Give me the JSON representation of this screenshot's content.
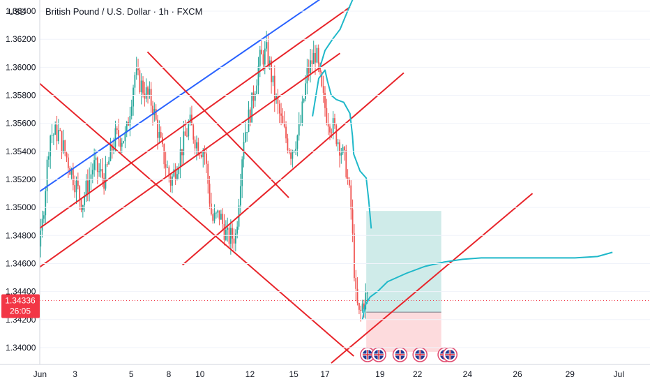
{
  "chart_data": {
    "type": "candlestick",
    "title": "British Pound / U.S. Dollar · 1h · FXCM",
    "currency_label": "USD",
    "y_axis": {
      "ylim": [
        1.3388,
        1.3648
      ],
      "ticks": [
        1.34,
        1.342,
        1.344,
        1.346,
        1.348,
        1.35,
        1.352,
        1.354,
        1.356,
        1.358,
        1.36,
        1.362,
        1.364
      ],
      "tick_labels": [
        "1.34000",
        "1.34200",
        "1.34400",
        "1.34600",
        "1.34800",
        "1.35000",
        "1.35200",
        "1.35400",
        "1.35600",
        "1.35800",
        "1.36000",
        "1.36200",
        "1.36400"
      ]
    },
    "x_axis": {
      "xlim": [
        0,
        52
      ],
      "ticks": [
        {
          "label": "Jun",
          "x": 3.2
        },
        {
          "label": "3",
          "x": 6.0
        },
        {
          "label": "5",
          "x": 10.5
        },
        {
          "label": "8",
          "x": 13.5
        },
        {
          "label": "10",
          "x": 16.0
        },
        {
          "label": "12",
          "x": 20.0
        },
        {
          "label": "15",
          "x": 23.5
        },
        {
          "label": "17",
          "x": 26.0
        },
        {
          "label": "19",
          "x": 30.4
        },
        {
          "label": "22",
          "x": 33.4
        },
        {
          "label": "24",
          "x": 37.4
        },
        {
          "label": "26",
          "x": 41.4
        },
        {
          "label": "29",
          "x": 45.6
        },
        {
          "label": "Jul",
          "x": 49.5
        }
      ]
    },
    "last_price": {
      "value": 1.34336,
      "label": "1.34336",
      "countdown": "26:05",
      "color": "#f23645"
    },
    "candles_anchor_path": [
      [
        0.0,
        1.3465
      ],
      [
        1.0,
        1.3507
      ],
      [
        2.0,
        1.3492
      ],
      [
        2.6,
        1.3475
      ],
      [
        3.4,
        1.3476
      ],
      [
        4.1,
        1.3552
      ],
      [
        4.8,
        1.3553
      ],
      [
        5.8,
        1.3527
      ],
      [
        6.7,
        1.3503
      ],
      [
        7.6,
        1.353
      ],
      [
        8.5,
        1.352
      ],
      [
        9.3,
        1.355
      ],
      [
        10.2,
        1.355
      ],
      [
        10.9,
        1.3595
      ],
      [
        11.5,
        1.3586
      ],
      [
        12.3,
        1.3574
      ],
      [
        13.1,
        1.354
      ],
      [
        13.8,
        1.3518
      ],
      [
        14.6,
        1.354
      ],
      [
        15.3,
        1.356
      ],
      [
        15.9,
        1.3545
      ],
      [
        16.5,
        1.354
      ],
      [
        17.1,
        1.349
      ],
      [
        17.7,
        1.3495
      ],
      [
        18.3,
        1.3478
      ],
      [
        19.0,
        1.348
      ],
      [
        19.6,
        1.355
      ],
      [
        20.2,
        1.357
      ],
      [
        20.9,
        1.3605
      ],
      [
        21.5,
        1.3611
      ],
      [
        22.1,
        1.358
      ],
      [
        22.8,
        1.3555
      ],
      [
        23.4,
        1.354
      ],
      [
        24.1,
        1.3555
      ],
      [
        24.7,
        1.3595
      ],
      [
        25.4,
        1.3611
      ],
      [
        25.9,
        1.358
      ],
      [
        26.3,
        1.3565
      ],
      [
        26.8,
        1.3557
      ],
      [
        27.3,
        1.3545
      ],
      [
        27.8,
        1.353
      ],
      [
        28.2,
        1.35
      ],
      [
        28.6,
        1.3435
      ],
      [
        28.9,
        1.3421
      ],
      [
        29.1,
        1.343
      ],
      [
        29.4,
        1.3436
      ]
    ],
    "trend_lines": [
      {
        "color": "#2962ff",
        "points": [
          [
            0.0,
            1.3492
          ],
          [
            26.5,
            1.3654
          ]
        ]
      },
      {
        "color": "#e8252b",
        "points": [
          [
            0.0,
            1.3465
          ],
          [
            28.0,
            1.3643
          ]
        ]
      },
      {
        "color": "#e8252b",
        "points": [
          [
            2.0,
            1.345
          ],
          [
            27.2,
            1.361
          ]
        ]
      },
      {
        "color": "#e8252b",
        "points": [
          [
            14.6,
            1.3459
          ],
          [
            32.3,
            1.3596
          ]
        ]
      },
      {
        "color": "#e8252b",
        "points": [
          [
            0.0,
            1.3613
          ],
          [
            28.3,
            1.3394
          ]
        ]
      },
      {
        "color": "#e8252b",
        "points": [
          [
            11.8,
            1.3611
          ],
          [
            23.1,
            1.3507
          ]
        ]
      },
      {
        "color": "#e8252b",
        "points": [
          [
            26.5,
            1.3389
          ],
          [
            42.6,
            1.351
          ]
        ]
      }
    ],
    "projection_path": {
      "color": "#1fb8c9",
      "points": [
        [
          25.0,
          1.3565
        ],
        [
          25.5,
          1.3592
        ],
        [
          26.0,
          1.3598
        ],
        [
          26.2,
          1.359
        ],
        [
          26.5,
          1.358
        ],
        [
          26.9,
          1.3577
        ],
        [
          27.5,
          1.3575
        ],
        [
          28.0,
          1.3567
        ],
        [
          28.2,
          1.3551
        ],
        [
          28.3,
          1.3538
        ],
        [
          28.8,
          1.3526
        ],
        [
          29.3,
          1.3521
        ],
        [
          29.5,
          1.3505
        ],
        [
          29.7,
          1.3485
        ],
        [
          null,
          null
        ],
        [
          25.6,
          1.36
        ],
        [
          26.0,
          1.3612
        ],
        [
          26.6,
          1.362
        ],
        [
          27.2,
          1.3627
        ],
        [
          27.8,
          1.364
        ],
        [
          28.2,
          1.3648
        ],
        [
          29.0,
          1.3665
        ],
        [
          null,
          null
        ],
        [
          29.0,
          1.342
        ],
        [
          29.2,
          1.343
        ],
        [
          29.6,
          1.3436
        ],
        [
          30.2,
          1.344
        ],
        [
          31.0,
          1.3447
        ],
        [
          32.5,
          1.3453
        ],
        [
          34.0,
          1.3458
        ],
        [
          35.5,
          1.3461
        ],
        [
          37.0,
          1.3463
        ],
        [
          38.5,
          1.3464
        ],
        [
          40.0,
          1.3464
        ],
        [
          42.0,
          1.3464
        ],
        [
          44.0,
          1.3464
        ],
        [
          46.0,
          1.3464
        ],
        [
          47.8,
          1.3465
        ],
        [
          49.0,
          1.3468
        ]
      ]
    },
    "position": {
      "x_start": 29.3,
      "x_end": 35.3,
      "entry": 1.34253,
      "target": 1.34975,
      "stop": 1.3397,
      "profit_color": "#26a69a",
      "loss_color": "#f23645"
    },
    "event_markers": {
      "count": 6,
      "x": [
        29.4,
        30.3,
        32.0,
        33.6,
        35.6,
        36.0
      ],
      "flag": "GB"
    },
    "colors": {
      "up": "#26a69a",
      "down": "#ef5350",
      "grid": "#f0f3fa"
    }
  }
}
